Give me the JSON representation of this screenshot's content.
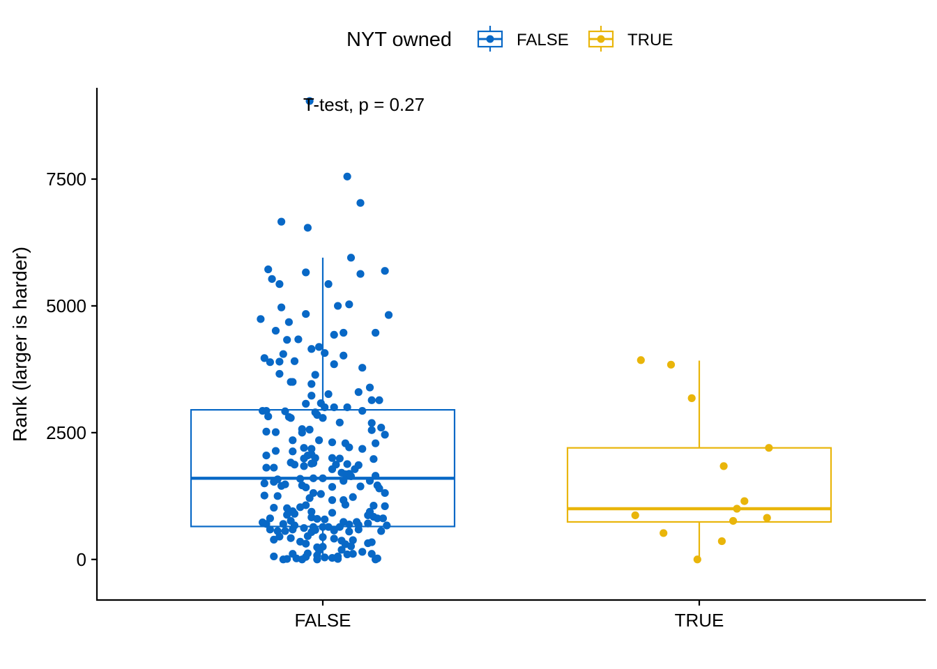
{
  "legend": {
    "title": "NYT owned",
    "entries": [
      {
        "label": "FALSE",
        "color": "#0868C6"
      },
      {
        "label": "TRUE",
        "color": "#E9B50A"
      }
    ]
  },
  "annotation": "T-test, p = 0.27",
  "chart_data": {
    "type": "box",
    "title": "",
    "xlabel": "",
    "ylabel": "Rank (larger is harder)",
    "ylim": [
      -800,
      9300
    ],
    "yticks": [
      0,
      2500,
      5000,
      7500
    ],
    "categories": [
      "FALSE",
      "TRUE"
    ],
    "grid": false,
    "legend_position": "top",
    "series": [
      {
        "name": "FALSE",
        "color": "#0868C6",
        "box": {
          "q1": 650,
          "median": 1600,
          "q3": 2950,
          "whisker_low": 0,
          "whisker_high": 5950
        },
        "points": [
          [
            -0.07,
            9040
          ],
          [
            0.13,
            7550
          ],
          [
            0.2,
            7030
          ],
          [
            -0.22,
            6660
          ],
          [
            -0.08,
            6540
          ],
          [
            0.15,
            5950
          ],
          [
            -0.29,
            5720
          ],
          [
            -0.27,
            5530
          ],
          [
            0.2,
            5630
          ],
          [
            0.33,
            5690
          ],
          [
            -0.09,
            5660
          ],
          [
            0.03,
            5430
          ],
          [
            -0.23,
            5430
          ],
          [
            -0.22,
            4970
          ],
          [
            0.08,
            5000
          ],
          [
            0.14,
            5030
          ],
          [
            -0.33,
            4740
          ],
          [
            -0.09,
            4840
          ],
          [
            0.35,
            4820
          ],
          [
            -0.18,
            4680
          ],
          [
            -0.25,
            4510
          ],
          [
            0.06,
            4430
          ],
          [
            0.11,
            4470
          ],
          [
            0.28,
            4470
          ],
          [
            -0.19,
            4330
          ],
          [
            -0.13,
            4340
          ],
          [
            -0.06,
            4150
          ],
          [
            -0.02,
            4190
          ],
          [
            0.01,
            4070
          ],
          [
            0.11,
            4020
          ],
          [
            -0.21,
            4050
          ],
          [
            -0.31,
            3970
          ],
          [
            -0.28,
            3890
          ],
          [
            -0.23,
            3900
          ],
          [
            -0.15,
            3910
          ],
          [
            0.06,
            3850
          ],
          [
            0.21,
            3780
          ],
          [
            -0.23,
            3660
          ],
          [
            -0.04,
            3640
          ],
          [
            -0.06,
            3460
          ],
          [
            -0.16,
            3500
          ],
          [
            -0.17,
            3500
          ],
          [
            0.25,
            3390
          ],
          [
            0.03,
            3260
          ],
          [
            -0.06,
            3230
          ],
          [
            0.19,
            3300
          ],
          [
            -0.09,
            3070
          ],
          [
            -0.01,
            3080
          ],
          [
            0.26,
            3140
          ],
          [
            0.3,
            3140
          ],
          [
            -0.32,
            2930
          ],
          [
            -0.3,
            2930
          ],
          [
            -0.2,
            2920
          ],
          [
            -0.04,
            2900
          ],
          [
            0.01,
            3000
          ],
          [
            0.06,
            3000
          ],
          [
            0.13,
            3000
          ],
          [
            0.21,
            2930
          ],
          [
            -0.29,
            2820
          ],
          [
            -0.18,
            2810
          ],
          [
            -0.17,
            2790
          ],
          [
            -0.03,
            2850
          ],
          [
            0.0,
            2790
          ],
          [
            0.09,
            2700
          ],
          [
            0.26,
            2690
          ],
          [
            0.31,
            2600
          ],
          [
            0.33,
            2460
          ],
          [
            -0.3,
            2520
          ],
          [
            -0.25,
            2510
          ],
          [
            -0.11,
            2570
          ],
          [
            -0.07,
            2560
          ],
          [
            -0.11,
            2500
          ],
          [
            0.26,
            2550
          ],
          [
            -0.16,
            2350
          ],
          [
            -0.02,
            2350
          ],
          [
            0.05,
            2310
          ],
          [
            0.12,
            2290
          ],
          [
            0.14,
            2210
          ],
          [
            0.28,
            2290
          ],
          [
            -0.25,
            2140
          ],
          [
            -0.1,
            2200
          ],
          [
            -0.06,
            2180
          ],
          [
            -0.16,
            2130
          ],
          [
            0.21,
            2180
          ],
          [
            -0.3,
            2050
          ],
          [
            -0.06,
            2070
          ],
          [
            -0.08,
            2050
          ],
          [
            -0.04,
            2000
          ],
          [
            -0.1,
            1990
          ],
          [
            0.05,
            2000
          ],
          [
            0.09,
            1990
          ],
          [
            0.27,
            1980
          ],
          [
            -0.17,
            1910
          ],
          [
            -0.15,
            1870
          ],
          [
            -0.1,
            1840
          ],
          [
            -0.06,
            1890
          ],
          [
            -0.05,
            1900
          ],
          [
            0.07,
            1870
          ],
          [
            0.13,
            1880
          ],
          [
            0.19,
            1860
          ],
          [
            -0.26,
            1810
          ],
          [
            -0.3,
            1810
          ],
          [
            0.05,
            1780
          ],
          [
            0.17,
            1780
          ],
          [
            0.1,
            1710
          ],
          [
            -0.12,
            1590
          ],
          [
            -0.05,
            1600
          ],
          [
            0.0,
            1600
          ],
          [
            0.12,
            1680
          ],
          [
            0.14,
            1690
          ],
          [
            0.15,
            1640
          ],
          [
            0.28,
            1650
          ],
          [
            0.25,
            1550
          ],
          [
            -0.24,
            1580
          ],
          [
            -0.26,
            1530
          ],
          [
            -0.31,
            1500
          ],
          [
            -0.2,
            1480
          ],
          [
            -0.11,
            1460
          ],
          [
            -0.22,
            1450
          ],
          [
            -0.09,
            1420
          ],
          [
            0.05,
            1430
          ],
          [
            0.2,
            1440
          ],
          [
            0.11,
            1550
          ],
          [
            0.29,
            1460
          ],
          [
            0.3,
            1400
          ],
          [
            -0.05,
            1310
          ],
          [
            -0.01,
            1290
          ],
          [
            -0.24,
            1250
          ],
          [
            -0.31,
            1260
          ],
          [
            -0.07,
            1210
          ],
          [
            0.16,
            1230
          ],
          [
            0.33,
            1310
          ],
          [
            0.05,
            1170
          ],
          [
            0.11,
            1170
          ],
          [
            -0.09,
            1070
          ],
          [
            -0.12,
            1030
          ],
          [
            -0.26,
            1020
          ],
          [
            -0.19,
            1010
          ],
          [
            0.12,
            1080
          ],
          [
            0.27,
            1060
          ],
          [
            0.33,
            1050
          ],
          [
            -0.16,
            950
          ],
          [
            -0.15,
            900
          ],
          [
            -0.06,
            940
          ],
          [
            0.05,
            920
          ],
          [
            0.25,
            940
          ],
          [
            -0.19,
            880
          ],
          [
            -0.06,
            830
          ],
          [
            0.24,
            870
          ],
          [
            0.27,
            840
          ],
          [
            -0.28,
            810
          ],
          [
            -0.17,
            760
          ],
          [
            -0.03,
            800
          ],
          [
            0.01,
            790
          ],
          [
            0.11,
            740
          ],
          [
            0.18,
            740
          ],
          [
            0.29,
            810
          ],
          [
            0.32,
            810
          ],
          [
            -0.32,
            730
          ],
          [
            -0.3,
            700
          ],
          [
            -0.21,
            700
          ],
          [
            -0.15,
            670
          ],
          [
            -0.05,
            640
          ],
          [
            0.0,
            640
          ],
          [
            0.03,
            640
          ],
          [
            0.09,
            640
          ],
          [
            0.14,
            690
          ],
          [
            0.19,
            680
          ],
          [
            0.24,
            710
          ],
          [
            0.34,
            670
          ],
          [
            -0.28,
            590
          ],
          [
            -0.24,
            560
          ],
          [
            -0.2,
            560
          ],
          [
            -0.16,
            590
          ],
          [
            -0.1,
            620
          ],
          [
            -0.06,
            540
          ],
          [
            -0.04,
            580
          ],
          [
            0.06,
            570
          ],
          [
            0.14,
            550
          ],
          [
            0.19,
            590
          ],
          [
            0.31,
            560
          ],
          [
            -0.23,
            450
          ],
          [
            -0.17,
            420
          ],
          [
            -0.08,
            460
          ],
          [
            0.0,
            440
          ],
          [
            0.06,
            410
          ],
          [
            0.1,
            370
          ],
          [
            0.16,
            380
          ],
          [
            0.26,
            340
          ],
          [
            -0.26,
            390
          ],
          [
            -0.12,
            350
          ],
          [
            -0.09,
            310
          ],
          [
            0.12,
            300
          ],
          [
            0.15,
            260
          ],
          [
            0.24,
            320
          ],
          [
            -0.03,
            240
          ],
          [
            0.0,
            250
          ],
          [
            -0.02,
            180
          ],
          [
            0.1,
            190
          ],
          [
            -0.08,
            120
          ],
          [
            -0.16,
            110
          ],
          [
            -0.03,
            80
          ],
          [
            0.01,
            40
          ],
          [
            -0.19,
            10
          ],
          [
            -0.14,
            20
          ],
          [
            -0.03,
            0
          ],
          [
            0.05,
            30
          ],
          [
            -0.09,
            50
          ],
          [
            0.08,
            60
          ],
          [
            0.13,
            100
          ],
          [
            0.16,
            110
          ],
          [
            0.21,
            150
          ],
          [
            0.26,
            110
          ],
          [
            0.29,
            20
          ],
          [
            0.28,
            0
          ],
          [
            -0.26,
            60
          ],
          [
            -0.21,
            0
          ],
          [
            -0.11,
            0
          ],
          [
            0.08,
            10
          ]
        ]
      },
      {
        "name": "TRUE",
        "color": "#E9B50A",
        "box": {
          "q1": 740,
          "median": 1000,
          "q3": 2200,
          "whisker_low": 0,
          "whisker_high": 3920
        },
        "points": [
          [
            -0.31,
            3930
          ],
          [
            -0.15,
            3840
          ],
          [
            -0.04,
            3180
          ],
          [
            0.37,
            2200
          ],
          [
            0.13,
            1840
          ],
          [
            0.24,
            1150
          ],
          [
            0.2,
            1000
          ],
          [
            0.36,
            820
          ],
          [
            -0.34,
            870
          ],
          [
            0.18,
            760
          ],
          [
            -0.19,
            520
          ],
          [
            0.12,
            360
          ],
          [
            -0.01,
            0
          ]
        ]
      }
    ]
  }
}
